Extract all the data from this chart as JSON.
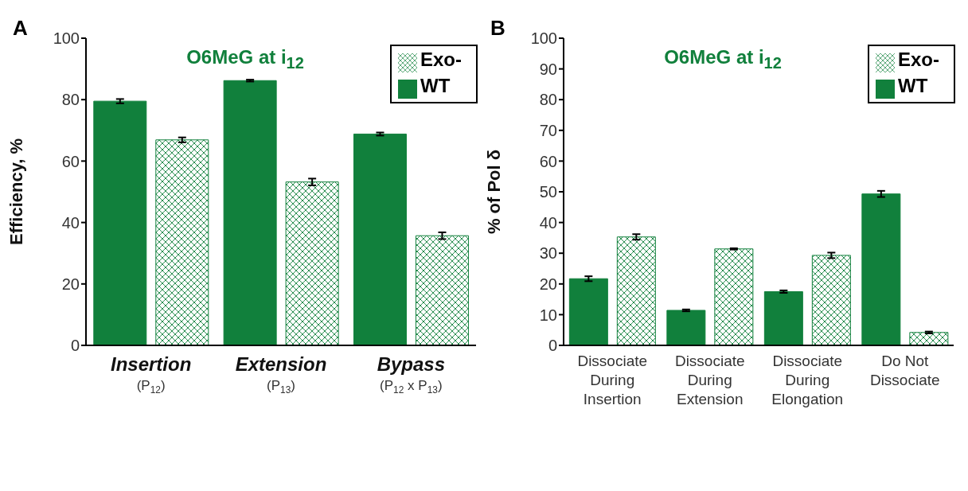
{
  "chart_data": [
    {
      "type": "bar",
      "title": "O6MeG at i$_{12}$",
      "ylabel": "Efficiency, %",
      "annotations": [
        "A"
      ],
      "categories": [
        "Insertion (P$_{12}$)",
        "Extension (P$_{13}$)",
        "Bypass (P$_{12}$ x P$_{13}$)"
      ],
      "series": [
        {
          "name": "WT",
          "color": "#11803c",
          "values": [
            79.5,
            86.2,
            68.8
          ],
          "errors": [
            0.7,
            0.3,
            0.5
          ]
        },
        {
          "name": "Exo-",
          "color": "#11803c",
          "values": [
            66.9,
            53.2,
            35.7
          ],
          "errors": [
            0.8,
            1.1,
            1.1
          ]
        }
      ],
      "ylim": [
        0,
        100
      ],
      "yticks": [
        0,
        20,
        40,
        60,
        80,
        100
      ],
      "legend": "top right"
    },
    {
      "type": "bar",
      "title": "O6MeG at i$_{12}$",
      "ylabel": "% of Pol δ",
      "annotations": [
        "B"
      ],
      "categories": [
        "Dissociate During Insertion",
        "Dissociate During Extension",
        "Dissociate During Elongation",
        "Do Not Dissociate"
      ],
      "series": [
        {
          "name": "WT",
          "color": "#11803c",
          "values": [
            21.7,
            11.4,
            17.5,
            49.3
          ],
          "errors": [
            0.8,
            0.3,
            0.4,
            1.0
          ]
        },
        {
          "name": "Exo-",
          "color": "#11803c",
          "values": [
            35.3,
            31.4,
            29.3,
            4.2
          ],
          "errors": [
            0.9,
            0.2,
            0.9,
            0.3
          ]
        }
      ],
      "ylim": [
        0,
        100
      ],
      "yticks": [
        0,
        10,
        20,
        30,
        40,
        50,
        60,
        70,
        80,
        90,
        100
      ],
      "legend": "top right"
    }
  ]
}
